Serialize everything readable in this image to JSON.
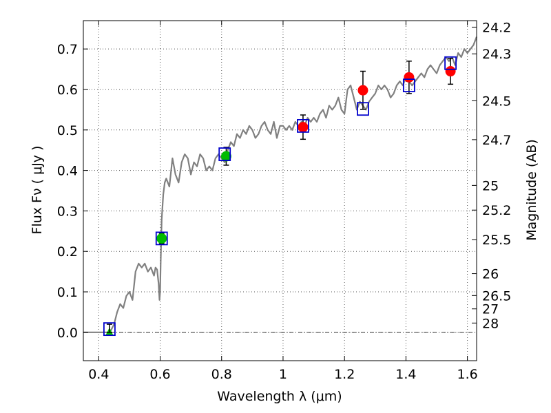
{
  "chart_data": {
    "type": "scatter",
    "title": "",
    "xlabel": "Wavelength  λ (μm)",
    "ylabel": "Flux  Fν  ( μJy )",
    "ylabel_right": "Magnitude (AB)",
    "xlim": [
      0.35,
      1.63
    ],
    "ylim": [
      -0.07,
      0.77
    ],
    "x_ticks": [
      0.4,
      0.6,
      0.8,
      1.0,
      1.2,
      1.4,
      1.6
    ],
    "x_tick_labels": [
      "0.4",
      "0.6",
      "0.8",
      "1",
      "1.2",
      "1.4",
      "1.6"
    ],
    "y_ticks": [
      0.0,
      0.1,
      0.2,
      0.3,
      0.4,
      0.5,
      0.6,
      0.7
    ],
    "y_tick_labels": [
      "0.0",
      "0.1",
      "0.2",
      "0.3",
      "0.4",
      "0.5",
      "0.6",
      "0.7"
    ],
    "mag_ticks": [
      {
        "label": "24.2",
        "flux": 0.754
      },
      {
        "label": "24.3",
        "flux": 0.688
      },
      {
        "label": "24.5",
        "flux": 0.572
      },
      {
        "label": "24.7",
        "flux": 0.476
      },
      {
        "label": "25",
        "flux": 0.363
      },
      {
        "label": "25.2",
        "flux": 0.302
      },
      {
        "label": "25.5",
        "flux": 0.229
      },
      {
        "label": "26",
        "flux": 0.145
      },
      {
        "label": "26.5",
        "flux": 0.091
      },
      {
        "label": "27",
        "flux": 0.058
      },
      {
        "label": "28",
        "flux": 0.023
      }
    ],
    "grid": true,
    "zero_line": true,
    "colors": {
      "model": "#808080",
      "model_photometry": "#0000cc",
      "green_points": "#00bb00",
      "red_points": "#ff0000",
      "green_triangle": "#00bb00",
      "errorbar": "#000000"
    },
    "series": [
      {
        "name": "model spectrum",
        "style": "line",
        "x": [
          0.35,
          0.43,
          0.44,
          0.45,
          0.46,
          0.47,
          0.48,
          0.49,
          0.5,
          0.51,
          0.52,
          0.53,
          0.54,
          0.55,
          0.56,
          0.57,
          0.58,
          0.585,
          0.59,
          0.595,
          0.598,
          0.6,
          0.602,
          0.605,
          0.61,
          0.615,
          0.62,
          0.63,
          0.64,
          0.65,
          0.66,
          0.67,
          0.68,
          0.69,
          0.7,
          0.71,
          0.72,
          0.73,
          0.74,
          0.75,
          0.76,
          0.77,
          0.78,
          0.79,
          0.8,
          0.81,
          0.82,
          0.83,
          0.84,
          0.85,
          0.86,
          0.87,
          0.88,
          0.89,
          0.9,
          0.91,
          0.92,
          0.93,
          0.94,
          0.95,
          0.96,
          0.97,
          0.98,
          0.99,
          1.0,
          1.01,
          1.02,
          1.03,
          1.04,
          1.05,
          1.06,
          1.07,
          1.08,
          1.09,
          1.1,
          1.11,
          1.12,
          1.13,
          1.14,
          1.15,
          1.16,
          1.17,
          1.18,
          1.19,
          1.2,
          1.21,
          1.22,
          1.23,
          1.24,
          1.25,
          1.26,
          1.27,
          1.28,
          1.29,
          1.3,
          1.31,
          1.32,
          1.33,
          1.34,
          1.35,
          1.36,
          1.37,
          1.38,
          1.39,
          1.4,
          1.41,
          1.42,
          1.43,
          1.44,
          1.45,
          1.46,
          1.47,
          1.48,
          1.49,
          1.5,
          1.51,
          1.52,
          1.53,
          1.54,
          1.55,
          1.56,
          1.57,
          1.58,
          1.59,
          1.6,
          1.61,
          1.62,
          1.63
        ],
        "y": [
          0.0,
          0.0,
          0.005,
          0.02,
          0.05,
          0.07,
          0.06,
          0.09,
          0.1,
          0.08,
          0.15,
          0.17,
          0.16,
          0.17,
          0.15,
          0.16,
          0.14,
          0.16,
          0.155,
          0.12,
          0.08,
          0.1,
          0.18,
          0.28,
          0.34,
          0.37,
          0.38,
          0.36,
          0.43,
          0.39,
          0.37,
          0.42,
          0.44,
          0.43,
          0.39,
          0.42,
          0.41,
          0.44,
          0.43,
          0.4,
          0.41,
          0.4,
          0.43,
          0.44,
          0.43,
          0.42,
          0.45,
          0.47,
          0.46,
          0.49,
          0.48,
          0.5,
          0.49,
          0.51,
          0.5,
          0.48,
          0.49,
          0.51,
          0.52,
          0.5,
          0.49,
          0.52,
          0.48,
          0.51,
          0.51,
          0.5,
          0.51,
          0.5,
          0.52,
          0.51,
          0.52,
          0.51,
          0.53,
          0.52,
          0.53,
          0.52,
          0.54,
          0.55,
          0.53,
          0.56,
          0.55,
          0.56,
          0.58,
          0.55,
          0.54,
          0.6,
          0.61,
          0.58,
          0.55,
          0.57,
          0.56,
          0.55,
          0.57,
          0.58,
          0.59,
          0.61,
          0.6,
          0.61,
          0.6,
          0.58,
          0.59,
          0.61,
          0.62,
          0.61,
          0.63,
          0.62,
          0.61,
          0.62,
          0.63,
          0.64,
          0.63,
          0.65,
          0.66,
          0.65,
          0.64,
          0.66,
          0.67,
          0.68,
          0.67,
          0.68,
          0.66,
          0.69,
          0.68,
          0.7,
          0.69,
          0.7,
          0.71,
          0.73
        ]
      },
      {
        "name": "model photometry",
        "style": "open-square",
        "x": [
          0.435,
          0.605,
          0.81,
          1.065,
          1.26,
          1.41,
          1.545
        ],
        "y": [
          0.008,
          0.232,
          0.44,
          0.51,
          0.552,
          0.61,
          0.665
        ]
      },
      {
        "name": "observed (green)",
        "style": "filled-circle",
        "x": [
          0.605,
          0.815
        ],
        "y": [
          0.232,
          0.435
        ],
        "yerr": [
          0.013,
          0.022
        ]
      },
      {
        "name": "observed (red)",
        "style": "filled-circle",
        "x": [
          1.065,
          1.26,
          1.41,
          1.545
        ],
        "y": [
          0.507,
          0.598,
          0.63,
          0.645
        ],
        "yerr": [
          0.03,
          0.047,
          0.04,
          0.032
        ]
      },
      {
        "name": "upper limit",
        "style": "triangle",
        "x": [
          0.435
        ],
        "y": [
          0.0
        ],
        "yerr": [
          0.02
        ]
      }
    ]
  }
}
